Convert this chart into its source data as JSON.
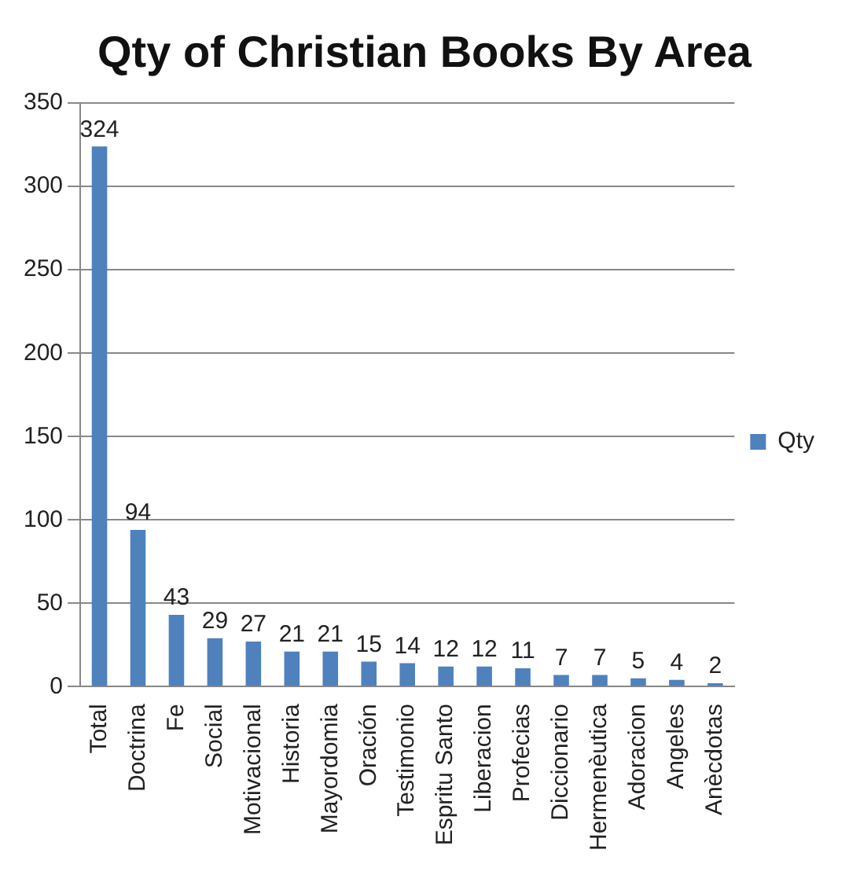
{
  "chart_data": {
    "type": "bar",
    "title": "Qty of Christian Books By Area",
    "categories": [
      "Total",
      "Doctrina",
      "Fe",
      "Social",
      "Motivacional",
      "Historia",
      "Mayordomia",
      "Oración",
      "Testimonio",
      "Espritu Santo",
      "Liberacion",
      "Profecias",
      "Diccionario",
      "Hermenèutica",
      "Adoracion",
      "Angeles",
      "Anècdotas"
    ],
    "series": [
      {
        "name": "Qty",
        "color": "#4f81bd",
        "values": [
          324,
          94,
          43,
          29,
          27,
          21,
          21,
          15,
          14,
          12,
          12,
          11,
          7,
          7,
          5,
          4,
          2
        ]
      }
    ],
    "ylim": [
      0,
      350
    ],
    "yticks": [
      0,
      50,
      100,
      150,
      200,
      250,
      300,
      350
    ],
    "grid": "y",
    "legend": "right",
    "data_labels": true
  }
}
